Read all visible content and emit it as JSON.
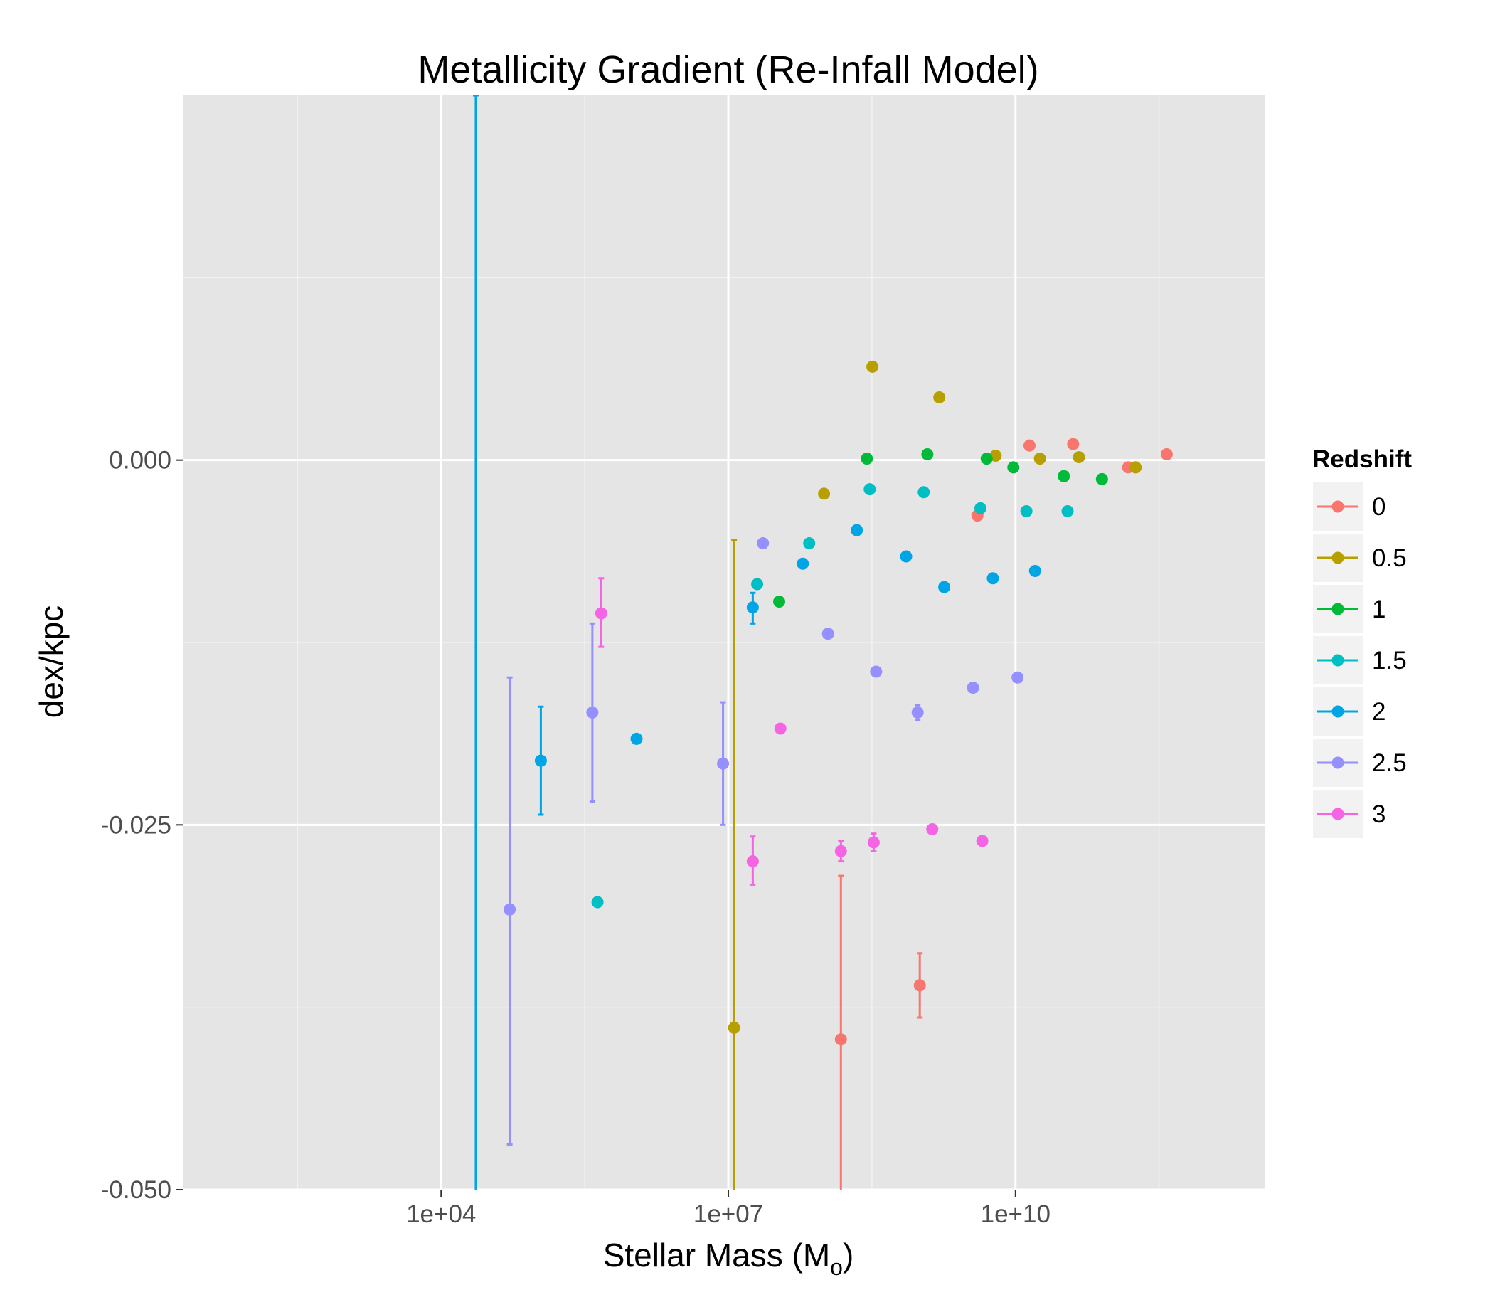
{
  "chart_data": {
    "type": "scatter",
    "title": "Metallicity Gradient (Re-Infall Model)",
    "xlabel": "Stellar Mass (M",
    "xlabel_sub": "o",
    "xlabel_close": ")",
    "ylabel": "dex/kpc",
    "x_scale": "log10",
    "xlim": [
      20,
      4000000000000
    ],
    "ylim": [
      -0.05,
      0.025
    ],
    "x_ticks": [
      {
        "value": 10000,
        "label": "1e+04"
      },
      {
        "value": 10000000,
        "label": "1e+07"
      },
      {
        "value": 10000000000,
        "label": "1e+10"
      }
    ],
    "y_ticks": [
      {
        "value": 0.0,
        "label": "0.000"
      },
      {
        "value": -0.025,
        "label": "-0.025"
      },
      {
        "value": -0.05,
        "label": "-0.050"
      }
    ],
    "legend": {
      "title": "Redshift",
      "position": "right"
    },
    "grid": true,
    "series": [
      {
        "name": "0",
        "color": "#F8766D",
        "points": [
          {
            "x": 150000000,
            "y": -0.0397,
            "ymin": -0.0615,
            "ymax": -0.0285
          },
          {
            "x": 1000000000,
            "y": -0.036,
            "ymin": -0.0382,
            "ymax": -0.0338
          },
          {
            "x": 4000000000,
            "y": -0.0038
          },
          {
            "x": 14000000000,
            "y": 0.001
          },
          {
            "x": 40000000000,
            "y": 0.0011
          },
          {
            "x": 150000000000,
            "y": -0.0005
          },
          {
            "x": 380000000000,
            "y": 0.0004
          }
        ]
      },
      {
        "name": "0.5",
        "color": "#B79F00",
        "points": [
          {
            "x": 11500000,
            "y": -0.0389,
            "ymin": -0.06,
            "ymax": -0.0055
          },
          {
            "x": 100000000,
            "y": -0.0023
          },
          {
            "x": 320000000,
            "y": 0.0064
          },
          {
            "x": 1600000000,
            "y": 0.0043
          },
          {
            "x": 6200000000,
            "y": 0.0003
          },
          {
            "x": 18000000000,
            "y": 0.0001
          },
          {
            "x": 46000000000,
            "y": 0.0002
          },
          {
            "x": 180000000000,
            "y": -0.0005
          }
        ]
      },
      {
        "name": "1",
        "color": "#00BA38",
        "points": [
          {
            "x": 34000000,
            "y": -0.0097
          },
          {
            "x": 280000000,
            "y": 0.0001
          },
          {
            "x": 1200000000,
            "y": 0.0004
          },
          {
            "x": 5000000000,
            "y": 0.0001
          },
          {
            "x": 9500000000,
            "y": -0.0005
          },
          {
            "x": 32000000000,
            "y": -0.0011
          },
          {
            "x": 80000000000,
            "y": -0.0013
          }
        ]
      },
      {
        "name": "1.5",
        "color": "#00BFC4",
        "points": [
          {
            "x": 430000,
            "y": -0.0303
          },
          {
            "x": 20000000,
            "y": -0.0085
          },
          {
            "x": 70000000,
            "y": -0.0057
          },
          {
            "x": 300000000,
            "y": -0.002
          },
          {
            "x": 1100000000,
            "y": -0.0022
          },
          {
            "x": 4300000000,
            "y": -0.0033
          },
          {
            "x": 13000000000,
            "y": -0.0035
          },
          {
            "x": 35000000000,
            "y": -0.0035
          }
        ]
      },
      {
        "name": "2",
        "color": "#00A5E5",
        "points": [
          {
            "x": 23000,
            "y": -0.06,
            "ymin": -0.06,
            "ymax": 0.025
          },
          {
            "x": 110000,
            "y": -0.0206,
            "ymin": -0.0243,
            "ymax": -0.0169
          },
          {
            "x": 1100000,
            "y": -0.0191
          },
          {
            "x": 18000000,
            "y": -0.0101,
            "ymin": -0.0112,
            "ymax": -0.0091
          },
          {
            "x": 60000000,
            "y": -0.0071
          },
          {
            "x": 220000000,
            "y": -0.0048
          },
          {
            "x": 720000000,
            "y": -0.0066
          },
          {
            "x": 1800000000,
            "y": -0.0087
          },
          {
            "x": 5800000000,
            "y": -0.0081
          },
          {
            "x": 16000000000,
            "y": -0.0076
          }
        ]
      },
      {
        "name": "2.5",
        "color": "#9590FF",
        "points": [
          {
            "x": 52000,
            "y": -0.0308,
            "ymin": -0.0469,
            "ymax": -0.0149
          },
          {
            "x": 380000,
            "y": -0.0173,
            "ymin": -0.0234,
            "ymax": -0.0112
          },
          {
            "x": 8800000,
            "y": -0.0208,
            "ymin": -0.025,
            "ymax": -0.0166
          },
          {
            "x": 23000000,
            "y": -0.0057
          },
          {
            "x": 110000000,
            "y": -0.0119
          },
          {
            "x": 350000000,
            "y": -0.0145
          },
          {
            "x": 950000000,
            "y": -0.0173,
            "ymin": -0.0178,
            "ymax": -0.0168
          },
          {
            "x": 3600000000,
            "y": -0.0156
          },
          {
            "x": 10500000000,
            "y": -0.0149
          }
        ]
      },
      {
        "name": "3",
        "color": "#F564E3",
        "points": [
          {
            "x": 470000,
            "y": -0.0105,
            "ymin": -0.0128,
            "ymax": -0.0081
          },
          {
            "x": 18000000,
            "y": -0.0275,
            "ymin": -0.0291,
            "ymax": -0.0258
          },
          {
            "x": 35000000,
            "y": -0.0184
          },
          {
            "x": 150000000,
            "y": -0.0268,
            "ymin": -0.0275,
            "ymax": -0.0261
          },
          {
            "x": 330000000,
            "y": -0.0262,
            "ymin": -0.0268,
            "ymax": -0.0256
          },
          {
            "x": 1350000000,
            "y": -0.0253
          },
          {
            "x": 4500000000,
            "y": -0.0261
          }
        ]
      }
    ]
  }
}
